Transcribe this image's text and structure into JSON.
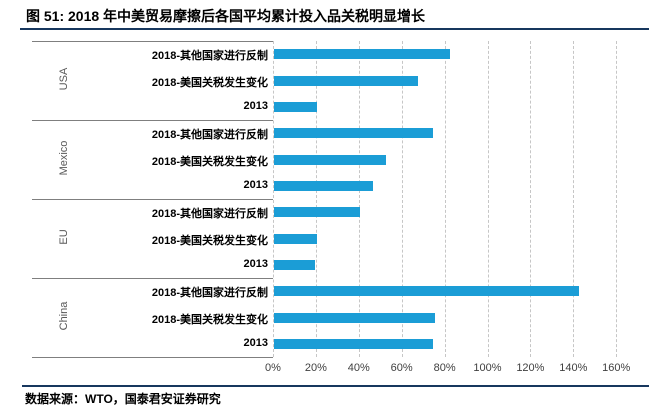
{
  "header": {
    "title": "图 51: 2018 年中美贸易摩擦后各国平均累计投入品关税明显增长"
  },
  "footer": {
    "source": "数据来源：WTO，国泰君安证券研究"
  },
  "colors": {
    "bar": "#1b9dd6",
    "rule": "#17375e",
    "grid": "#c6c6c6",
    "separator": "#7f7f7f",
    "group_label": "#595959",
    "tick_label": "#404040",
    "item_label": "#000000"
  },
  "chart_data": {
    "type": "bar",
    "orientation": "horizontal",
    "title": "2018 年中美贸易摩擦后各国平均累计投入品关税明显增长",
    "xlabel": "",
    "ylabel": "",
    "xlim": [
      0,
      160
    ],
    "x_ticks": [
      "0%",
      "20%",
      "40%",
      "60%",
      "80%",
      "100%",
      "120%",
      "140%",
      "160%"
    ],
    "grid": "vertical-dashed",
    "legend": "none",
    "groups": [
      {
        "name": "USA",
        "items": [
          {
            "label": "2018-其他国家进行反制",
            "value": 82
          },
          {
            "label": "2018-美国关税发生变化",
            "value": 67
          },
          {
            "label": "2013",
            "value": 20
          }
        ]
      },
      {
        "name": "Mexico",
        "items": [
          {
            "label": "2018-其他国家进行反制",
            "value": 74
          },
          {
            "label": "2018-美国关税发生变化",
            "value": 52
          },
          {
            "label": "2013",
            "value": 46
          }
        ]
      },
      {
        "name": "EU",
        "items": [
          {
            "label": "2018-其他国家进行反制",
            "value": 40
          },
          {
            "label": "2018-美国关税发生变化",
            "value": 20
          },
          {
            "label": "2013",
            "value": 19
          }
        ]
      },
      {
        "name": "China",
        "items": [
          {
            "label": "2018-其他国家进行反制",
            "value": 142
          },
          {
            "label": "2018-美国关税发生变化",
            "value": 75
          },
          {
            "label": "2013",
            "value": 74
          }
        ]
      }
    ]
  }
}
